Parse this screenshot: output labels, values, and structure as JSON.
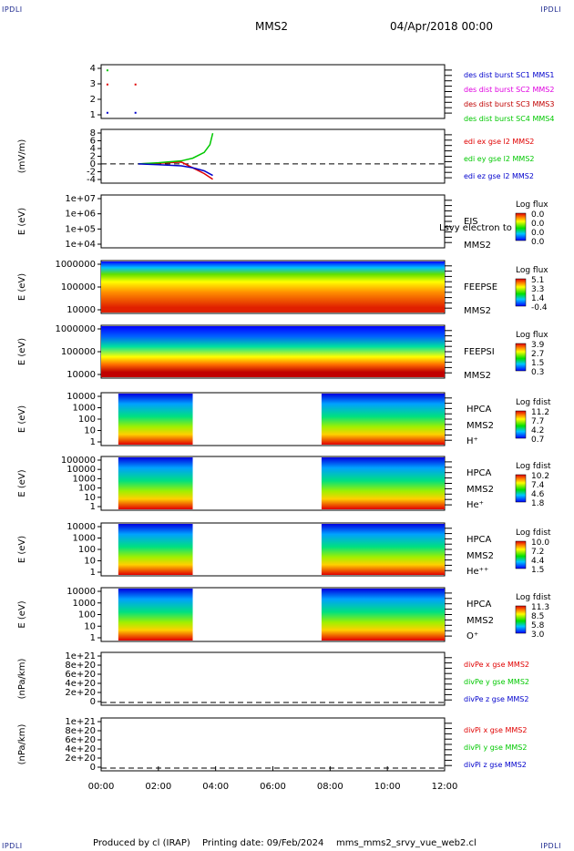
{
  "corner_label": "IPDLI",
  "header": {
    "mission": "MMS2",
    "date": "04/Apr/2018 00:00"
  },
  "footer": {
    "produced_by": "Produced by cl (IRAP)",
    "printing_date": "Printing date: 09/Feb/2024",
    "file": "mms_mms2_srvy_vue_web2.cl"
  },
  "colors": {
    "red": "#e00000",
    "green": "#00c800",
    "blue": "#0000cc",
    "magenta": "#e000e0",
    "dark_red": "#c00000"
  },
  "chart_data": [
    {
      "type": "scatter",
      "ylim": [
        0.6,
        4.4
      ],
      "yticks": [
        "4",
        "3",
        "2",
        "1"
      ],
      "legend": [
        {
          "label": "des dist burst SC1 MMS1",
          "color": "blue"
        },
        {
          "label": "des dist burst SC2 MMS2",
          "color": "magenta"
        },
        {
          "label": "des dist burst SC3 MMS3",
          "color": "dark_red"
        },
        {
          "label": "des dist burst SC4 MMS4",
          "color": "green"
        }
      ],
      "points": [
        {
          "x": 0.22,
          "y": 4,
          "color": "green"
        },
        {
          "x": 0.22,
          "y": 3,
          "color": "red"
        },
        {
          "x": 1.2,
          "y": 3,
          "color": "red"
        },
        {
          "x": 0.22,
          "y": 1,
          "color": "blue"
        },
        {
          "x": 1.2,
          "y": 1,
          "color": "blue"
        }
      ]
    },
    {
      "type": "line",
      "ylabel": "(mV/m)",
      "ylim": [
        -5,
        9
      ],
      "yticks": [
        "8",
        "6",
        "4",
        "2",
        "0",
        "-2",
        "-4"
      ],
      "zero_line": true,
      "legend": [
        {
          "label": "edi ex gse l2 MMS2",
          "color": "red"
        },
        {
          "label": "edi ey gse l2 MMS2",
          "color": "green"
        },
        {
          "label": "edi ez gse l2 MMS2",
          "color": "blue"
        }
      ],
      "series": [
        {
          "name": "edi ex gse l2 MMS2",
          "color": "red",
          "x": [
            1.3,
            2.0,
            2.8,
            3.2,
            3.6,
            3.9
          ],
          "y": [
            0,
            0.2,
            0.5,
            -1,
            -2.5,
            -4
          ]
        },
        {
          "name": "edi ey gse l2 MMS2",
          "color": "green",
          "x": [
            1.3,
            2.0,
            2.8,
            3.2,
            3.6,
            3.8,
            3.9
          ],
          "y": [
            0,
            0.3,
            0.8,
            1.5,
            3,
            5,
            8
          ]
        },
        {
          "name": "edi ez gse l2 MMS2",
          "color": "blue",
          "x": [
            1.3,
            2.0,
            2.8,
            3.2,
            3.6,
            3.9
          ],
          "y": [
            0,
            -0.2,
            -0.5,
            -1,
            -1.8,
            -3
          ]
        }
      ]
    },
    {
      "type": "heatmap",
      "ylabel": "E (eV)",
      "yticks": [
        "1e+07",
        "1e+06",
        "1e+05",
        "1e+04"
      ],
      "side": [
        "EIS",
        "MMS2"
      ],
      "overlay_text": "Lsvy electron to",
      "cbar_title": "Log flux",
      "cbar_ticks": [
        "0.0",
        "0.0",
        "0.0",
        "0.0"
      ],
      "coverage": []
    },
    {
      "type": "heatmap",
      "ylabel": "E (eV)",
      "yticks": [
        "1000000",
        "100000",
        "10000"
      ],
      "side": [
        "FEEPSE",
        "MMS2"
      ],
      "cbar_title": "Log flux",
      "cbar_ticks": [
        "5.1",
        "3.3",
        "1.4",
        "-0.4"
      ],
      "coverage": [
        [
          0,
          12
        ]
      ]
    },
    {
      "type": "heatmap",
      "ylabel": "E (eV)",
      "yticks": [
        "1000000",
        "100000",
        "10000"
      ],
      "side": [
        "FEEPSI",
        "MMS2"
      ],
      "cbar_title": "Log flux",
      "cbar_ticks": [
        "3.9",
        "2.7",
        "1.5",
        "0.3"
      ],
      "coverage": [
        [
          0,
          12
        ]
      ]
    },
    {
      "type": "heatmap",
      "ylabel": "E (eV)",
      "yticks": [
        "10000",
        "1000",
        "100",
        "10",
        "1"
      ],
      "side": [
        "HPCA",
        "MMS2",
        "H⁺"
      ],
      "cbar_title": "Log fdist",
      "cbar_ticks": [
        "11.2",
        "7.7",
        "4.2",
        "0.7"
      ],
      "coverage": [
        [
          0.6,
          3.2
        ],
        [
          7.7,
          12
        ]
      ]
    },
    {
      "type": "heatmap",
      "ylabel": "E (eV)",
      "yticks": [
        "100000",
        "10000",
        "1000",
        "100",
        "10",
        "1"
      ],
      "side": [
        "HPCA",
        "MMS2",
        "He⁺"
      ],
      "cbar_title": "Log fdist",
      "cbar_ticks": [
        "10.2",
        "7.4",
        "4.6",
        "1.8"
      ],
      "coverage": [
        [
          0.6,
          3.2
        ],
        [
          7.7,
          12
        ]
      ]
    },
    {
      "type": "heatmap",
      "ylabel": "E (eV)",
      "yticks": [
        "10000",
        "1000",
        "100",
        "10",
        "1"
      ],
      "side": [
        "HPCA",
        "MMS2",
        "He⁺⁺"
      ],
      "cbar_title": "Log fdist",
      "cbar_ticks": [
        "10.0",
        "7.2",
        "4.4",
        "1.5"
      ],
      "coverage": [
        [
          0.6,
          3.2
        ],
        [
          7.7,
          12
        ]
      ]
    },
    {
      "type": "heatmap",
      "ylabel": "E (eV)",
      "yticks": [
        "10000",
        "1000",
        "100",
        "10",
        "1"
      ],
      "side": [
        "HPCA",
        "MMS2",
        "O⁺"
      ],
      "cbar_title": "Log fdist",
      "cbar_ticks": [
        "11.3",
        "8.5",
        "5.8",
        "3.0"
      ],
      "coverage": [
        [
          0.6,
          3.2
        ],
        [
          7.7,
          12
        ]
      ]
    },
    {
      "type": "line",
      "ylabel": "(nPa/km)",
      "yticks": [
        "1e+21",
        "8e+20",
        "6e+20",
        "4e+20",
        "2e+20",
        "0"
      ],
      "zero_line": true,
      "legend": [
        {
          "label": "divPe x gse MMS2",
          "color": "red"
        },
        {
          "label": "divPe y gse MMS2",
          "color": "green"
        },
        {
          "label": "divPe z gse MMS2",
          "color": "blue"
        }
      ],
      "series": []
    },
    {
      "type": "line",
      "ylabel": "(nPa/km)",
      "yticks": [
        "1e+21",
        "8e+20",
        "6e+20",
        "4e+20",
        "2e+20",
        "0"
      ],
      "zero_line": true,
      "legend": [
        {
          "label": "divPi x gse MMS2",
          "color": "red"
        },
        {
          "label": "divPi y gse MMS2",
          "color": "green"
        },
        {
          "label": "divPi z gse MMS2",
          "color": "blue"
        }
      ],
      "series": []
    }
  ],
  "time_axis": {
    "xlim": [
      0,
      12
    ],
    "labels": [
      "00:00",
      "02:00",
      "04:00",
      "06:00",
      "08:00",
      "10:00",
      "12:00"
    ]
  }
}
